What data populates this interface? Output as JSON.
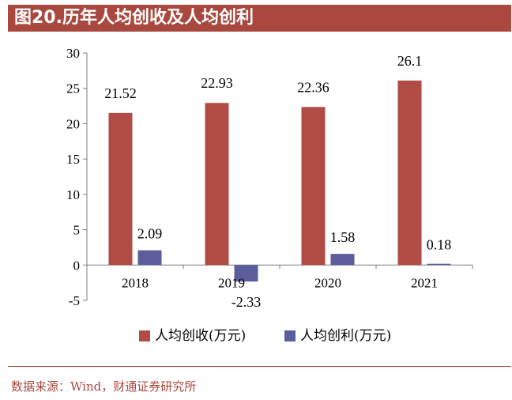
{
  "title": "图20.历年人均创收及人均创利",
  "source": "数据来源：Wind，财通证券研究所",
  "colors": {
    "title_bg": "#A8483E",
    "series1": "#B04B46",
    "series2": "#5B5E9A",
    "axis": "#7f7f7f"
  },
  "chart_data": {
    "type": "bar",
    "categories": [
      "2018",
      "2019",
      "2020",
      "2021"
    ],
    "series": [
      {
        "name": "人均创收(万元)",
        "values": [
          21.52,
          22.93,
          22.36,
          26.1
        ],
        "labels": [
          "21.52",
          "22.93",
          "22.36",
          "26.1"
        ],
        "color": "#B04B46"
      },
      {
        "name": "人均创利(万元)",
        "values": [
          2.09,
          -2.33,
          1.58,
          0.18
        ],
        "labels": [
          "2.09",
          "-2.33",
          "1.58",
          "0.18"
        ],
        "color": "#5B5E9A"
      }
    ],
    "ylim": [
      -5,
      30
    ],
    "yticks": [
      -5,
      0,
      5,
      10,
      15,
      20,
      25,
      30
    ],
    "grid": false,
    "legend": "bottom"
  }
}
